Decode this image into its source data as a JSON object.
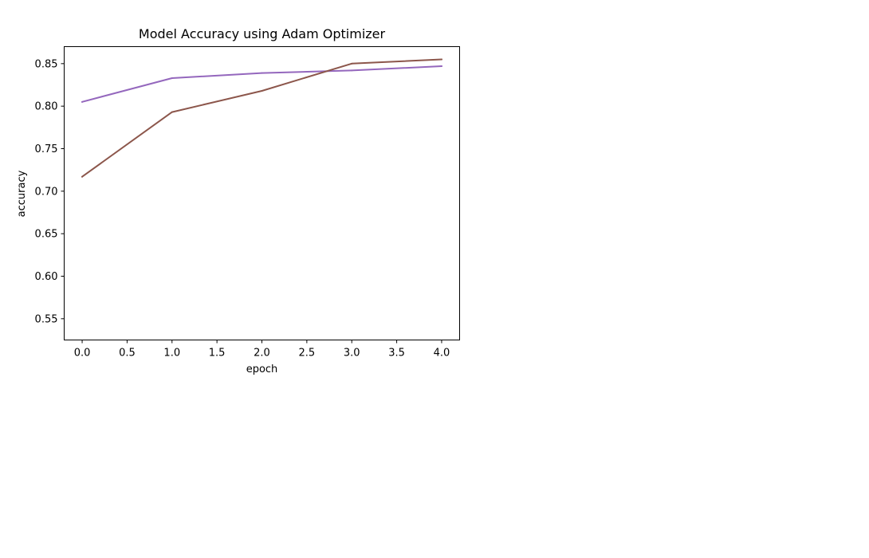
{
  "chart_data": {
    "type": "line",
    "title": "Model Accuracy using Adam Optimizer",
    "xlabel": "epoch",
    "ylabel": "accuracy",
    "xlim": [
      -0.2,
      4.2
    ],
    "ylim": [
      0.525,
      0.87
    ],
    "grid": false,
    "xticks": [
      0.0,
      0.5,
      1.0,
      1.5,
      2.0,
      2.5,
      3.0,
      3.5,
      4.0
    ],
    "xtick_labels": [
      "0.0",
      "0.5",
      "1.0",
      "1.5",
      "2.0",
      "2.5",
      "3.0",
      "3.5",
      "4.0"
    ],
    "yticks": [
      0.55,
      0.6,
      0.65,
      0.7,
      0.75,
      0.8,
      0.85
    ],
    "ytick_labels": [
      "0.55",
      "0.60",
      "0.65",
      "0.70",
      "0.75",
      "0.80",
      "0.85"
    ],
    "x": [
      0,
      1,
      2,
      3,
      4
    ],
    "series": [
      {
        "color": "#9467bd",
        "values": [
          0.805,
          0.833,
          0.839,
          0.842,
          0.847
        ]
      },
      {
        "color": "#8c564b",
        "values": [
          0.717,
          0.793,
          0.818,
          0.85,
          0.855
        ]
      }
    ]
  }
}
